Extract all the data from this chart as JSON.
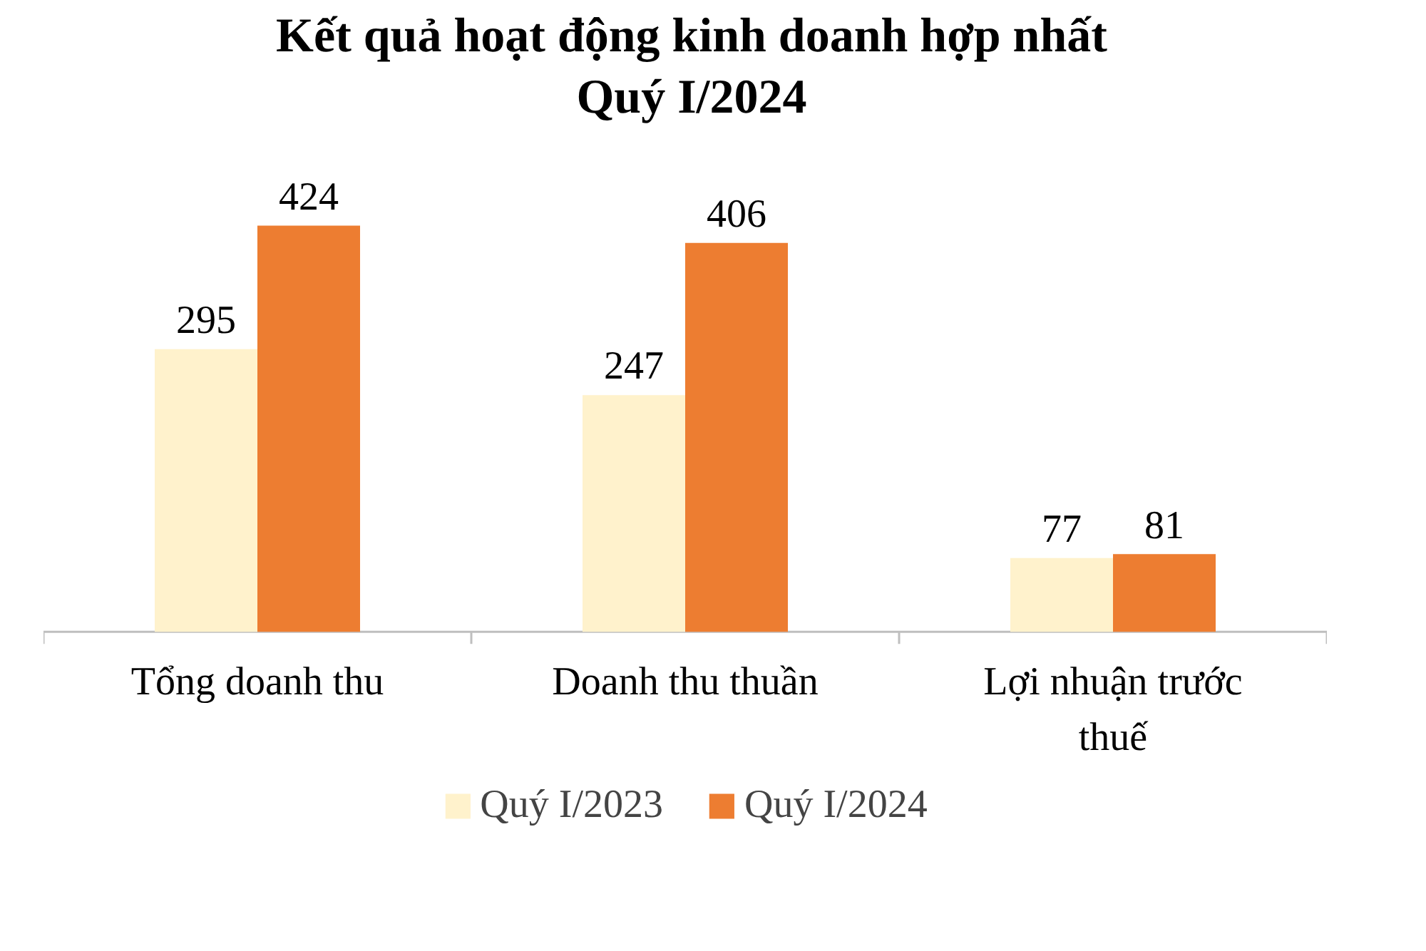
{
  "chart_data": {
    "type": "bar",
    "title": "Kết quả hoạt động kinh  doanh hợp nhất\nQuý I/2024",
    "categories": [
      "Tổng doanh thu",
      "Doanh thu thuần",
      "Lợi nhuận trước thuế"
    ],
    "series": [
      {
        "name": "Quý I/2023",
        "color": "#fff2cc",
        "values": [
          295,
          247,
          77
        ]
      },
      {
        "name": "Quý I/2024",
        "color": "#ed7d31",
        "values": [
          424,
          406,
          81
        ]
      }
    ],
    "data_labels": true,
    "legend": "bottom",
    "grid": false
  }
}
